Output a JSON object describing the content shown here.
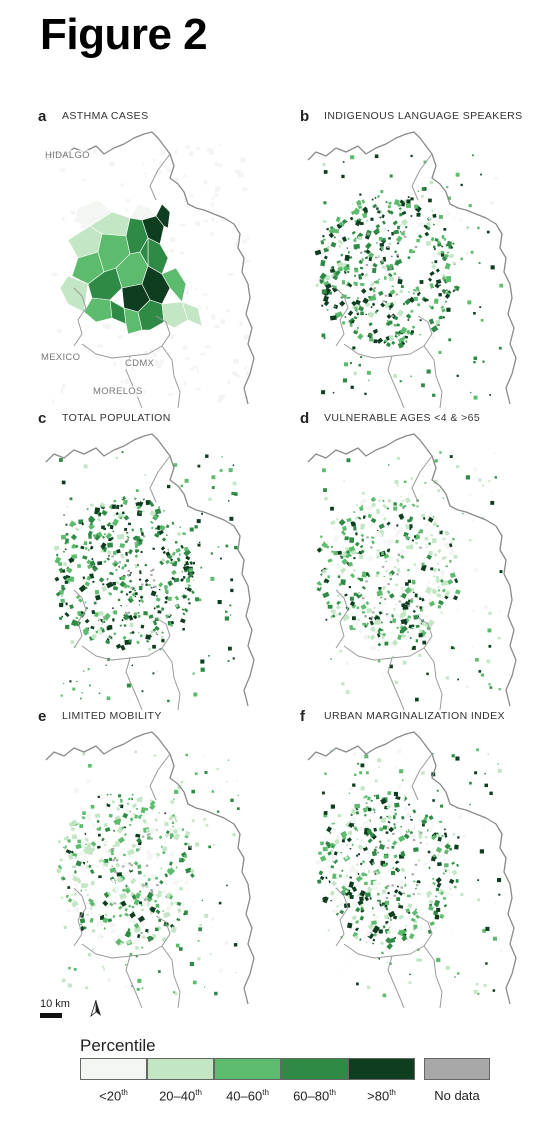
{
  "figure_title": "Figure 2",
  "panels": [
    {
      "letter": "a",
      "title": "ASTHMA CASES",
      "mode": "asthma"
    },
    {
      "letter": "b",
      "title": "INDIGENOUS LANGUAGE SPEAKERS",
      "mode": "indigenous"
    },
    {
      "letter": "c",
      "title": "TOTAL POPULATION",
      "mode": "population"
    },
    {
      "letter": "d",
      "title": "VULNERABLE AGES <4 & >65",
      "mode": "ages"
    },
    {
      "letter": "e",
      "title": "LIMITED  MOBILITY",
      "mode": "mobility"
    },
    {
      "letter": "f",
      "title": "URBAN MARGINALIZATION INDEX",
      "mode": "marginalization"
    }
  ],
  "region_labels": {
    "hidalgo": "HIDALGO",
    "mexico": "MEXICO",
    "cdmx": "CDMX",
    "morelos": "MORELOS"
  },
  "scale": {
    "label": "10 km"
  },
  "legend": {
    "title": "Percentile",
    "classes": [
      {
        "base": "<20",
        "sup": "th",
        "color": "#f3f6f3"
      },
      {
        "base": "20–40",
        "sup": "th",
        "color": "#c3e6c4"
      },
      {
        "base": "40–60",
        "sup": "th",
        "color": "#5dbb6e"
      },
      {
        "base": "60–80",
        "sup": "th",
        "color": "#2f8a45"
      },
      {
        "base": ">80",
        "sup": "th",
        "color": "#0e3d20"
      }
    ],
    "no_data": {
      "label": "No data",
      "color": "#a8a8a8"
    }
  },
  "colors": {
    "boundary": "#8a8a8a",
    "inner_boundary": "#9a9a9a",
    "void": "#f4f4f4"
  }
}
